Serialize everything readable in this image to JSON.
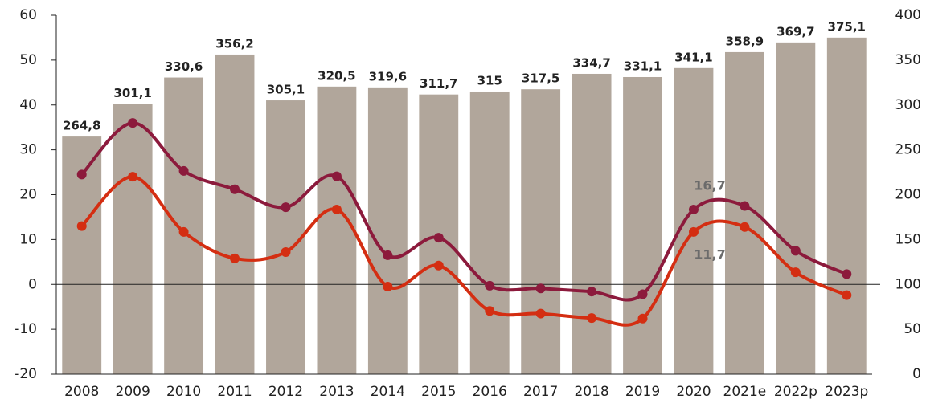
{
  "chart_data": {
    "type": "bar-line",
    "categories": [
      "2008",
      "2009",
      "2010",
      "2011",
      "2012",
      "2013",
      "2014",
      "2015",
      "2016",
      "2017",
      "2018",
      "2019",
      "2020",
      "2021e",
      "2022p",
      "2023p"
    ],
    "bars": {
      "color": "#b1a69b",
      "axis": "y2",
      "values": [
        264.8,
        301.1,
        330.6,
        356.2,
        305.1,
        320.5,
        319.6,
        311.7,
        315,
        317.5,
        334.7,
        331.1,
        341.1,
        358.9,
        369.7,
        375.1
      ],
      "value_labels": [
        "264,8",
        "301,1",
        "330,6",
        "356,2",
        "305,1",
        "320,5",
        "319,6",
        "311,7",
        "315",
        "317,5",
        "334,7",
        "331,1",
        "341,1",
        "358,9",
        "369,7",
        "375,1"
      ]
    },
    "series": [
      {
        "color": "#8c1a3c",
        "values": [
          24.5,
          36,
          25.3,
          21.2,
          17.2,
          24.1,
          6.5,
          10.4,
          -0.3,
          -0.9,
          -1.6,
          -2.2,
          16.7,
          17.5,
          7.5,
          2.3
        ],
        "value_labels": [
          null,
          null,
          null,
          null,
          null,
          null,
          null,
          null,
          null,
          null,
          null,
          null,
          "16,7",
          null,
          null,
          null
        ]
      },
      {
        "color": "#d42e12",
        "values": [
          13,
          24,
          11.7,
          5.8,
          7.2,
          16.7,
          -0.5,
          4.2,
          -5.9,
          -6.5,
          -7.5,
          -7.6,
          11.7,
          12.8,
          2.7,
          -2.4
        ],
        "value_labels": [
          null,
          null,
          null,
          null,
          null,
          null,
          null,
          null,
          null,
          null,
          null,
          null,
          "11,7",
          null,
          null,
          null
        ]
      }
    ],
    "ylim": [
      -20,
      60
    ],
    "yticks": [
      -20,
      -10,
      0,
      10,
      20,
      30,
      40,
      50,
      60
    ],
    "y2lim": [
      0,
      400
    ],
    "y2ticks": [
      0,
      50,
      100,
      150,
      200,
      250,
      300,
      350,
      400
    ]
  }
}
